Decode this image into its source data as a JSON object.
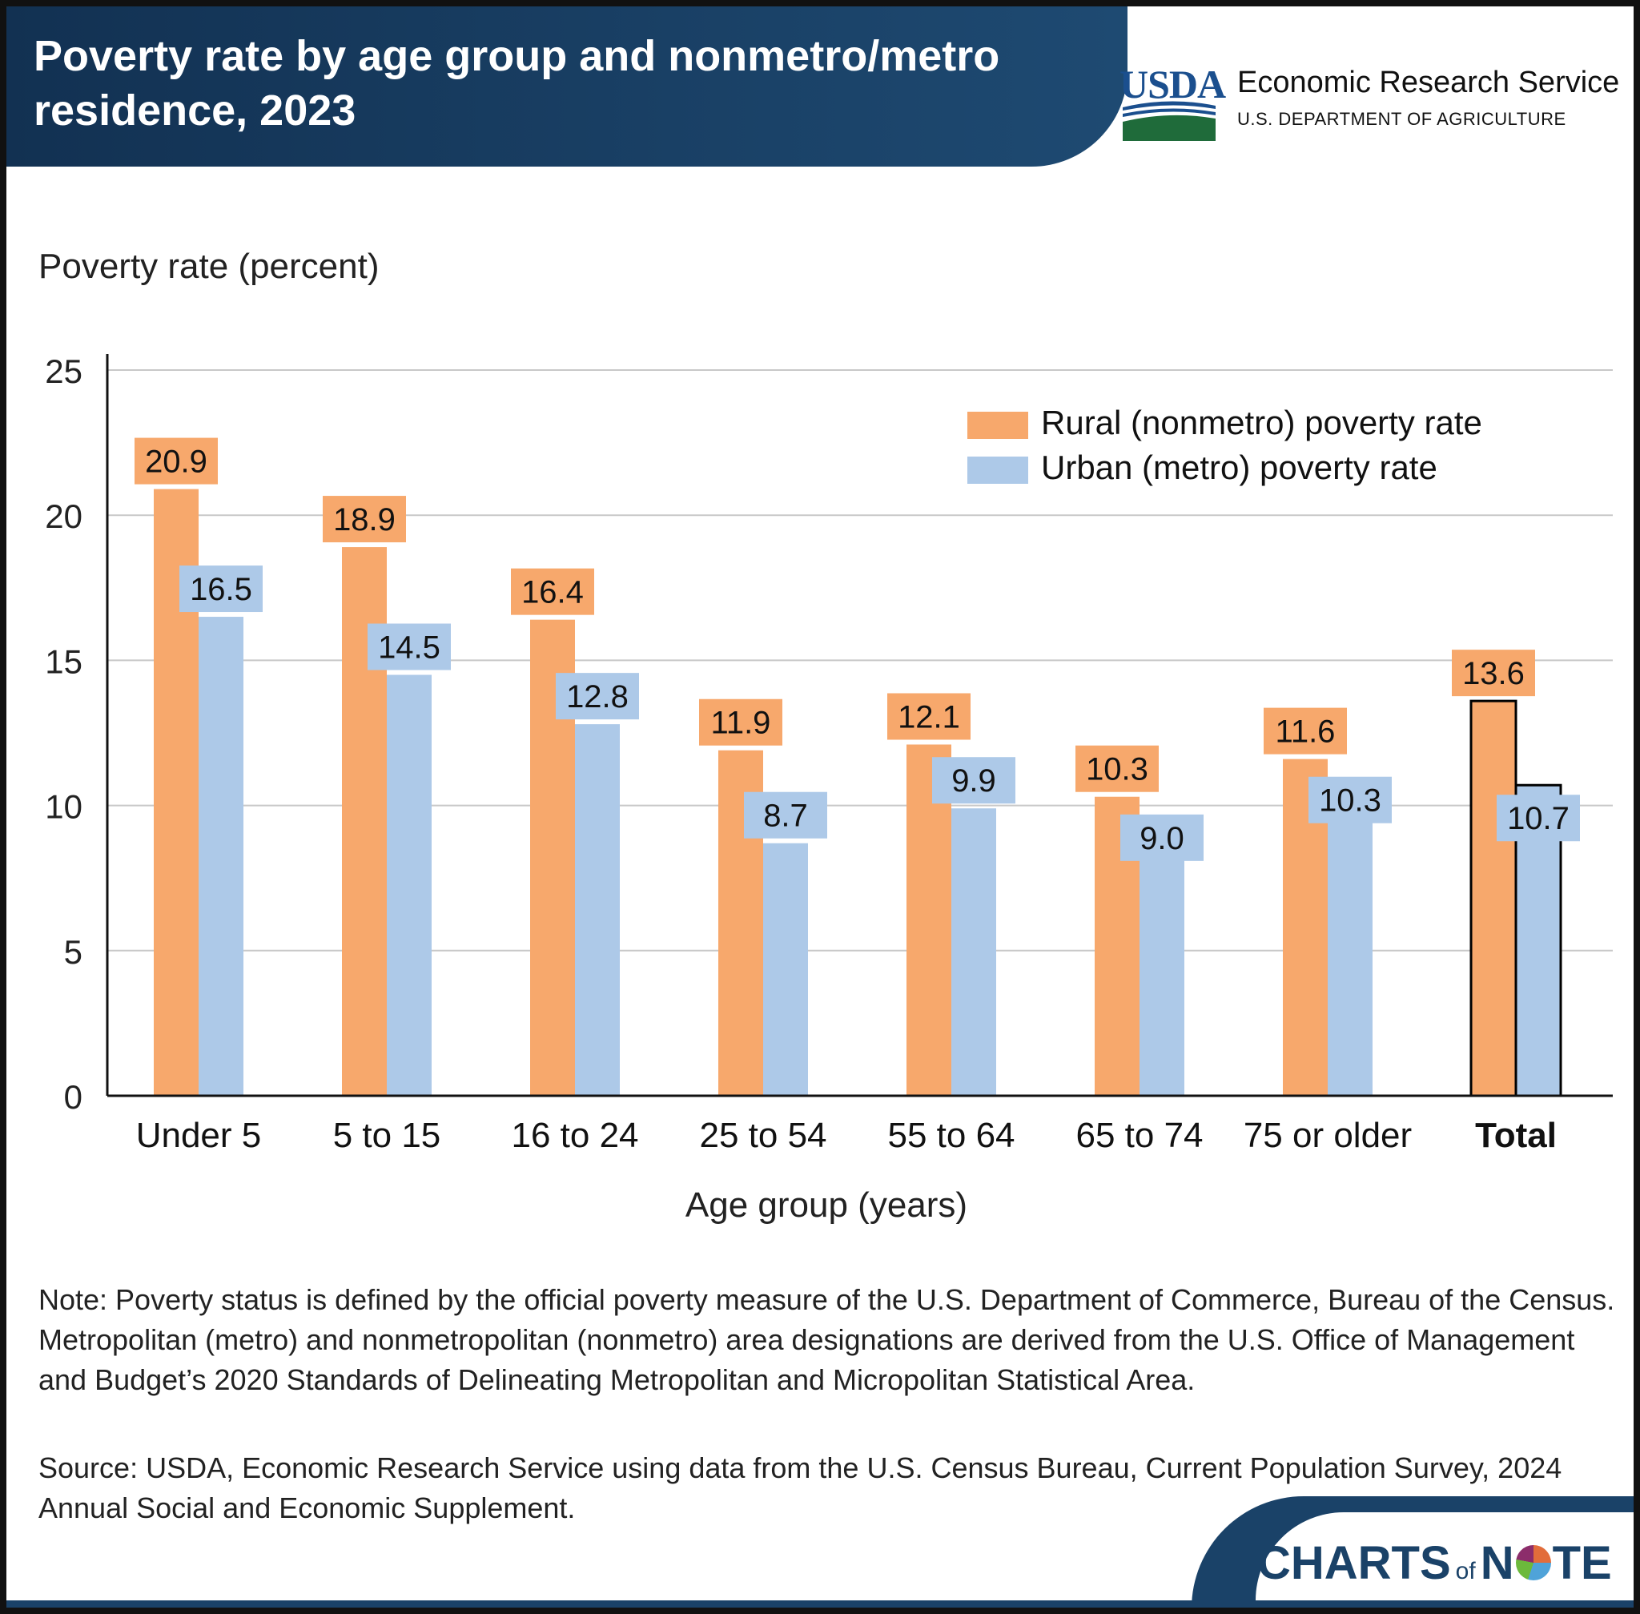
{
  "header": {
    "title": "Poverty rate by age group and nonmetro/metro residence, 2023",
    "org_logo_text": "USDA",
    "org_name": "Economic Research Service",
    "org_dept": "U.S. DEPARTMENT OF AGRICULTURE"
  },
  "colors": {
    "rural": "#f7a86c",
    "urban": "#adc9e8",
    "header_bg": "#16395f",
    "total_outline": "#000000"
  },
  "chart_data": {
    "type": "bar",
    "title": "Poverty rate by age group and nonmetro/metro residence, 2023",
    "ylabel": "Poverty rate (percent)",
    "xlabel": "Age group (years)",
    "ylim": [
      0,
      25
    ],
    "yticks": [
      0,
      5,
      10,
      15,
      20,
      25
    ],
    "grid": true,
    "legend_position": "top-right",
    "categories": [
      "Under 5",
      "5 to 15",
      "16 to 24",
      "25 to 54",
      "55 to 64",
      "65 to 74",
      "75 or older",
      "Total"
    ],
    "emphasized_category": "Total",
    "series": [
      {
        "name": "Rural (nonmetro) poverty rate",
        "values": [
          20.9,
          18.9,
          16.4,
          11.9,
          12.1,
          10.3,
          11.6,
          13.6
        ],
        "labels": [
          "20.9",
          "18.9",
          "16.4",
          "11.9",
          "12.1",
          "10.3",
          "11.6",
          "13.6"
        ]
      },
      {
        "name": "Urban (metro) poverty rate",
        "values": [
          16.5,
          14.5,
          12.8,
          8.7,
          9.9,
          9.0,
          10.3,
          10.7
        ],
        "labels": [
          "16.5",
          "14.5",
          "12.8",
          "8.7",
          "9.9",
          "9.0",
          "10.3",
          "10.7"
        ]
      }
    ]
  },
  "footer": {
    "note": "Note: Poverty status is defined by the official poverty measure of the U.S. Department of Commerce, Bureau of the Census. Metropolitan (metro) and nonmetropolitan (nonmetro) area designations are derived from the U.S. Office of Management and Budget’s 2020 Standards of Delineating Metropolitan and Micropolitan Statistical Area.",
    "source": "Source: USDA, Economic Research Service using data from the U.S. Census Bureau, Current Population Survey, 2024 Annual Social and Economic Supplement.",
    "brand_charts": "CHARTS",
    "brand_of": "of",
    "brand_n": "N",
    "brand_te": "TE"
  }
}
